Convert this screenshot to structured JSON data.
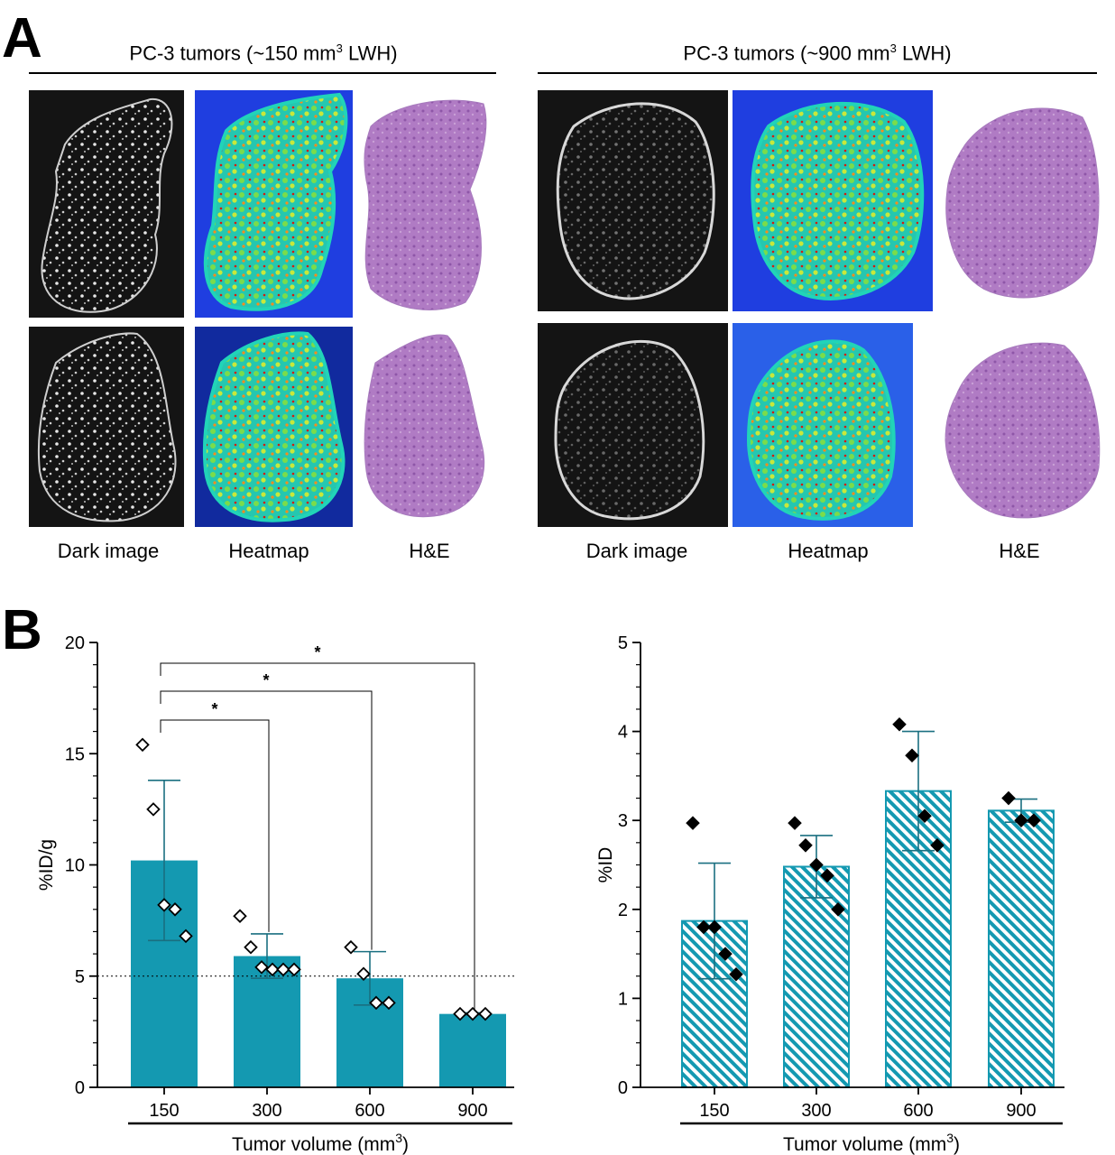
{
  "panelA": {
    "letter": "A",
    "groups": [
      {
        "title_pre": "PC-3 tumors (~150 mm",
        "title_sup": "3",
        "title_post": " LWH)",
        "captions": [
          "Dark image",
          "Heatmap",
          "H&E"
        ]
      },
      {
        "title_pre": "PC-3 tumors (~900 mm",
        "title_sup": "3",
        "title_post": " LWH)",
        "captions": [
          "Dark image",
          "Heatmap",
          "H&E"
        ]
      }
    ]
  },
  "panelB": {
    "letter": "B"
  },
  "colors": {
    "bar_fill": "#1499b1",
    "bar_hatch": "#1499b1",
    "marker": "#000000"
  },
  "chart_data": [
    {
      "type": "bar",
      "categories": [
        "150",
        "300",
        "600",
        "900"
      ],
      "values": [
        10.2,
        5.9,
        4.9,
        3.3
      ],
      "errors": [
        3.6,
        1.0,
        1.2,
        0.05
      ],
      "points": [
        [
          15.4,
          12.5,
          8.2,
          8.0,
          6.8
        ],
        [
          7.7,
          6.3,
          5.4,
          5.3,
          5.3,
          5.3
        ],
        [
          6.3,
          5.1,
          3.8,
          3.8
        ],
        [
          3.3,
          3.3,
          3.3
        ]
      ],
      "marker": "open-diamond",
      "fill": "solid",
      "ylabel": "%ID/g",
      "xlabel_pre": "Tumor volume (mm",
      "xlabel_sup": "3",
      "xlabel_post": ")",
      "ylim": [
        0,
        20
      ],
      "yticks": [
        0,
        5,
        10,
        15,
        20
      ],
      "reference_line": 5,
      "significance": [
        {
          "from": "150",
          "to": "300",
          "label": "*"
        },
        {
          "from": "150",
          "to": "600",
          "label": "*"
        },
        {
          "from": "150",
          "to": "900",
          "label": "*"
        }
      ]
    },
    {
      "type": "bar",
      "categories": [
        "150",
        "300",
        "600",
        "900"
      ],
      "values": [
        1.87,
        2.48,
        3.33,
        3.11
      ],
      "errors": [
        0.65,
        0.35,
        0.67,
        0.13
      ],
      "points": [
        [
          2.97,
          1.8,
          1.8,
          1.5,
          1.27
        ],
        [
          2.97,
          2.72,
          2.5,
          2.38,
          2.0
        ],
        [
          4.08,
          3.73,
          3.05,
          2.72
        ],
        [
          3.25,
          3.0,
          3.0
        ]
      ],
      "marker": "filled-diamond",
      "fill": "hatched",
      "ylabel": "%ID",
      "xlabel_pre": "Tumor volume (mm",
      "xlabel_sup": "3",
      "xlabel_post": ")",
      "ylim": [
        0,
        5
      ],
      "yticks": [
        0,
        1,
        2,
        3,
        4,
        5
      ]
    }
  ]
}
